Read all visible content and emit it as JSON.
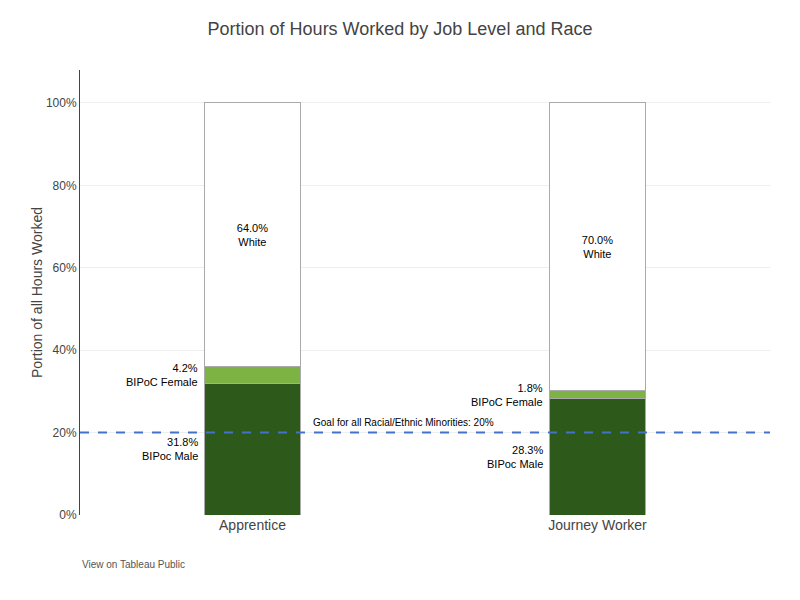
{
  "chart_data": {
    "type": "bar",
    "stacked": true,
    "title": "Portion of Hours Worked by Job Level and Race",
    "y_label": "Portion of all Hours Worked",
    "categories": [
      "Apprentice",
      "Journey Worker"
    ],
    "series": [
      {
        "name": "BIPoc Male",
        "color": "#2d5a1b",
        "values": [
          31.8,
          28.3
        ],
        "value_labels": [
          "31.8%\nBIPoc Male",
          "28.3%\nBIPoc Male"
        ]
      },
      {
        "name": "BIPoC Female",
        "color": "#7cb342",
        "values": [
          4.2,
          1.8
        ],
        "value_labels": [
          "4.2%\nBIPoC Female",
          "1.8%\nBIPoC Female"
        ]
      },
      {
        "name": "White",
        "color": "#ffffff",
        "values": [
          64.0,
          70.0
        ],
        "value_labels": [
          "64.0%\nWhite",
          "70.0%\nWhite"
        ]
      }
    ],
    "data_labels": true,
    "goal_line": {
      "value": 20,
      "label": "Goal for all Racial/Ethnic Minorities: 20%",
      "color": "#4472c4",
      "line_style": "dashed"
    },
    "ylim": [
      0,
      108
    ],
    "yticks": [
      {
        "value": 0,
        "label": "0%"
      },
      {
        "value": 20,
        "label": "20%"
      },
      {
        "value": 40,
        "label": "40%"
      },
      {
        "value": 60,
        "label": "60%"
      },
      {
        "value": 80,
        "label": "80%"
      },
      {
        "value": 100,
        "label": "100%"
      }
    ],
    "grid": true,
    "footer": "View on Tableau Public"
  }
}
